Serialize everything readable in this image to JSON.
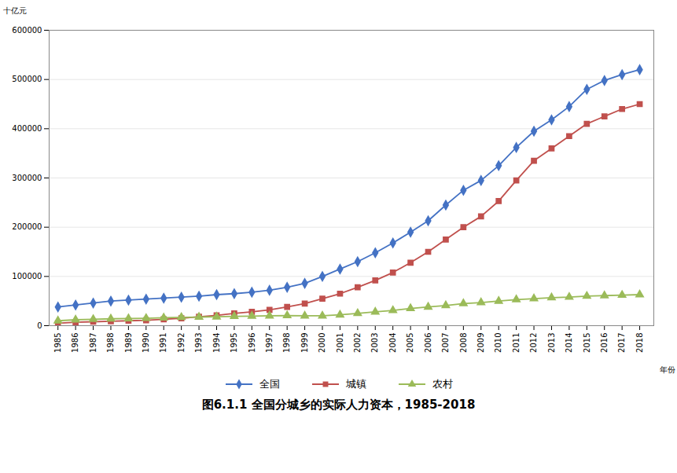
{
  "chart_data": {
    "type": "line",
    "title": "图6.1.1 全国分城乡的实际人力资本，1985-2018",
    "xlabel": "年份",
    "ylabel": "十亿元",
    "x": [
      1985,
      1986,
      1987,
      1988,
      1989,
      1990,
      1991,
      1992,
      1993,
      1994,
      1995,
      1996,
      1997,
      1998,
      1999,
      2000,
      2001,
      2002,
      2003,
      2004,
      2005,
      2006,
      2007,
      2008,
      2009,
      2010,
      2011,
      2012,
      2013,
      2014,
      2015,
      2016,
      2017,
      2018
    ],
    "series": [
      {
        "name": "全国",
        "color": "#4472C4",
        "marker": "diamond",
        "values": [
          38000,
          42000,
          46000,
          50000,
          52000,
          54000,
          56000,
          58000,
          60000,
          63000,
          65000,
          68000,
          72000,
          78000,
          86000,
          100000,
          115000,
          130000,
          148000,
          168000,
          190000,
          213000,
          245000,
          275000,
          295000,
          325000,
          362000,
          395000,
          418000,
          445000,
          480000,
          498000,
          510000,
          520000
        ]
      },
      {
        "name": "城镇",
        "color": "#C0504D",
        "marker": "square",
        "values": [
          5000,
          7000,
          8000,
          9000,
          10000,
          11000,
          13000,
          15000,
          18000,
          21000,
          25000,
          28000,
          32000,
          38000,
          45000,
          55000,
          65000,
          78000,
          92000,
          108000,
          128000,
          150000,
          175000,
          200000,
          222000,
          253000,
          295000,
          335000,
          360000,
          385000,
          410000,
          425000,
          440000,
          450000
        ]
      },
      {
        "name": "农村",
        "color": "#9BBB59",
        "marker": "triangle",
        "values": [
          10000,
          12000,
          13000,
          14000,
          14500,
          15000,
          16000,
          17000,
          17500,
          18000,
          19000,
          19500,
          20000,
          20500,
          20000,
          20000,
          22000,
          25000,
          28000,
          31000,
          35000,
          38000,
          41000,
          45000,
          47000,
          50000,
          53000,
          55000,
          57000,
          58000,
          60000,
          61000,
          62000,
          63000
        ]
      }
    ],
    "xlim": [
      1984.5,
      2018.8
    ],
    "xticks": [
      1985,
      1986,
      1987,
      1988,
      1989,
      1990,
      1991,
      1992,
      1993,
      1994,
      1995,
      1996,
      1997,
      1998,
      1999,
      2000,
      2001,
      2002,
      2003,
      2004,
      2005,
      2006,
      2007,
      2008,
      2009,
      2010,
      2011,
      2012,
      2013,
      2014,
      2015,
      2016,
      2017,
      2018
    ],
    "ylim": [
      0,
      600000
    ],
    "yticks": [
      0,
      100000,
      200000,
      300000,
      400000,
      500000,
      600000
    ],
    "grid": true,
    "legend": "bottom"
  }
}
